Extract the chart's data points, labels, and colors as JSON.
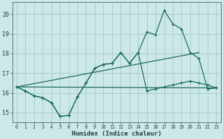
{
  "xlabel": "Humidex (Indice chaleur)",
  "bg_color": "#cce8e8",
  "grid_color": "#aacccc",
  "line_color": "#1a6b5a",
  "xlim": [
    -0.5,
    23.5
  ],
  "ylim": [
    14.5,
    20.6
  ],
  "yticks": [
    15,
    16,
    17,
    18,
    19,
    20
  ],
  "xticks": [
    0,
    1,
    2,
    3,
    4,
    5,
    6,
    7,
    8,
    9,
    10,
    11,
    12,
    13,
    14,
    15,
    16,
    17,
    18,
    19,
    20,
    21,
    22,
    23
  ],
  "line1_x": [
    0,
    1,
    2,
    3,
    4,
    5,
    6,
    7,
    8,
    9,
    10,
    11,
    12,
    13,
    14,
    15,
    16,
    17,
    18,
    19,
    20,
    21,
    22,
    23
  ],
  "line1_y": [
    16.3,
    16.1,
    15.85,
    15.75,
    15.5,
    14.8,
    14.85,
    15.8,
    16.5,
    17.25,
    17.45,
    17.5,
    18.05,
    17.5,
    18.05,
    19.1,
    18.95,
    20.2,
    19.5,
    19.25,
    18.05,
    17.75,
    16.2,
    16.25
  ],
  "line2_x": [
    0,
    1,
    2,
    3,
    4,
    5,
    6,
    7,
    8,
    9,
    10,
    11,
    12,
    13,
    14,
    15,
    16,
    17,
    18,
    19,
    20,
    21,
    22,
    23
  ],
  "line2_y": [
    16.3,
    16.1,
    15.85,
    15.75,
    15.5,
    14.8,
    14.85,
    15.8,
    16.5,
    17.25,
    17.45,
    17.5,
    18.05,
    17.5,
    18.05,
    16.1,
    16.2,
    16.3,
    16.4,
    16.5,
    16.6,
    16.5,
    16.4,
    16.25
  ],
  "line3_x": [
    0,
    23
  ],
  "line3_y": [
    16.3,
    16.25
  ],
  "line4_x": [
    0,
    21
  ],
  "line4_y": [
    16.3,
    18.05
  ]
}
